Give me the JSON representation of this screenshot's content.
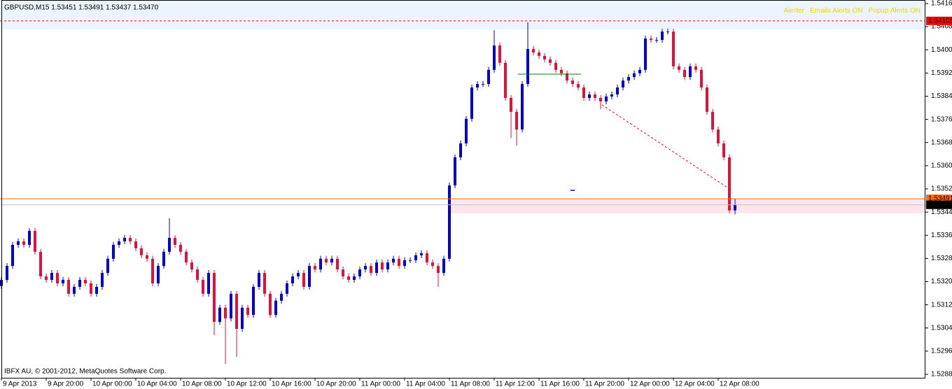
{
  "chart_data": {
    "type": "candlestick",
    "title": "GBPUSD,M15  1.53451 1.53491 1.53437 1.53470",
    "footer": "IBFX AU, © 2001-2012, MetaQuotes Software Corp.",
    "alerts": [
      "Alerter",
      "Emails Alerts ON",
      "Popup Alerts ON"
    ],
    "alert_color": "#e8d800",
    "up_color": "#0000c8",
    "down_color": "#dc143c",
    "xlim": [
      -0.25,
      165
    ],
    "ylim": [
      1.52873,
      1.54177
    ],
    "yticks": [
      1.54165,
      1.54085,
      1.54005,
      1.53925,
      1.53845,
      1.53765,
      1.53685,
      1.53605,
      1.53525,
      1.53445,
      1.53365,
      1.53285,
      1.53205,
      1.53125,
      1.53045,
      1.52965,
      1.52885
    ],
    "xticks": [
      {
        "value": 0,
        "label": "9 Apr 2013"
      },
      {
        "value": 8,
        "label": "9 Apr 20:00"
      },
      {
        "value": 16,
        "label": "10 Apr 00:00"
      },
      {
        "value": 24,
        "label": "10 Apr 04:00"
      },
      {
        "value": 32,
        "label": "10 Apr 08:00"
      },
      {
        "value": 40,
        "label": "10 Apr 12:00"
      },
      {
        "value": 48,
        "label": "10 Apr 16:00"
      },
      {
        "value": 56,
        "label": "10 Apr 20:00"
      },
      {
        "value": 64,
        "label": "11 Apr 00:00"
      },
      {
        "value": 72,
        "label": "11 Apr 04:00"
      },
      {
        "value": 80,
        "label": "11 Apr 08:00"
      },
      {
        "value": 88,
        "label": "11 Apr 12:00"
      },
      {
        "value": 96,
        "label": "11 Apr 16:00"
      },
      {
        "value": 104,
        "label": "11 Apr 20:00"
      },
      {
        "value": 112,
        "label": "12 Apr 00:00"
      },
      {
        "value": 120,
        "label": "12 Apr 04:00"
      },
      {
        "value": 128,
        "label": "12 Apr 08:00"
      }
    ],
    "open": [
      1.5319,
      1.53211,
      1.53259,
      1.53332,
      1.53344,
      1.53332,
      1.5338,
      1.53308,
      1.53223,
      1.53211,
      1.53235,
      1.53199,
      1.53211,
      1.53163,
      1.53187,
      1.53211,
      1.53199,
      1.53163,
      1.53187,
      1.53235,
      1.53284,
      1.53332,
      1.53344,
      1.53356,
      1.53344,
      1.5332,
      1.53296,
      1.53284,
      1.53199,
      1.53259,
      1.53308,
      1.53356,
      1.53332,
      1.53308,
      1.53271,
      1.53247,
      1.53211,
      1.53163,
      1.53235,
      1.53066,
      1.53115,
      1.53078,
      1.53163,
      1.53042,
      1.53115,
      1.5309,
      1.53187,
      1.53235,
      1.53163,
      1.5309,
      1.53139,
      1.53163,
      1.53199,
      1.53223,
      1.53235,
      1.53187,
      1.53259,
      1.53247,
      1.53284,
      1.53271,
      1.53284,
      1.53247,
      1.53223,
      1.53211,
      1.53223,
      1.53247,
      1.53259,
      1.53235,
      1.53271,
      1.53247,
      1.53271,
      1.53284,
      1.53259,
      1.53279,
      1.53279,
      1.53296,
      1.53303,
      1.53271,
      1.53259,
      1.53235,
      1.53284,
      1.53537,
      1.53634,
      1.53682,
      1.53767,
      1.53875,
      1.53887,
      1.53887,
      1.53936,
      1.5402,
      1.5396,
      1.53839,
      1.53791,
      1.5373,
      1.53887,
      1.54008,
      1.53996,
      1.53984,
      1.53972,
      1.5396,
      1.53936,
      1.53924,
      1.53899,
      1.53887,
      1.53875,
      1.53839,
      1.53851,
      1.53839,
      1.53827,
      1.53844,
      1.53851,
      1.53875,
      1.53899,
      1.53911,
      1.53924,
      1.53936,
      1.54044,
      1.54039,
      1.54039,
      1.54068,
      1.54068,
      1.53948,
      1.53936,
      1.53911,
      1.53948,
      1.53936,
      1.53875,
      1.53791,
      1.5373,
      1.53682,
      1.53634,
      1.53451
    ],
    "high": [
      1.53221,
      1.53269,
      1.53342,
      1.53354,
      1.53354,
      1.5339,
      1.5339,
      1.53318,
      1.53233,
      1.53245,
      1.53245,
      1.53221,
      1.53221,
      1.53197,
      1.53221,
      1.53221,
      1.53209,
      1.53197,
      1.53245,
      1.53294,
      1.53342,
      1.53354,
      1.53366,
      1.53366,
      1.53354,
      1.5333,
      1.53306,
      1.53294,
      1.53269,
      1.53318,
      1.53424,
      1.53366,
      1.53342,
      1.53318,
      1.53281,
      1.53257,
      1.53221,
      1.53245,
      1.53245,
      1.53125,
      1.53125,
      1.53173,
      1.53173,
      1.53125,
      1.53125,
      1.53197,
      1.53245,
      1.53245,
      1.53173,
      1.53149,
      1.53173,
      1.53209,
      1.53233,
      1.53245,
      1.53245,
      1.53269,
      1.53269,
      1.53294,
      1.53294,
      1.53294,
      1.53294,
      1.53257,
      1.53233,
      1.53233,
      1.53257,
      1.53269,
      1.53269,
      1.53281,
      1.53281,
      1.53281,
      1.53294,
      1.53294,
      1.53289,
      1.53289,
      1.53306,
      1.53313,
      1.53313,
      1.53281,
      1.53269,
      1.53294,
      1.53547,
      1.53644,
      1.53692,
      1.53777,
      1.53885,
      1.53897,
      1.53897,
      1.53946,
      1.54073,
      1.5403,
      1.5397,
      1.53849,
      1.53801,
      1.53897,
      1.541,
      1.54018,
      1.54006,
      1.53994,
      1.53982,
      1.5397,
      1.53946,
      1.53934,
      1.53909,
      1.53897,
      1.53885,
      1.53861,
      1.53861,
      1.53849,
      1.53854,
      1.53861,
      1.53885,
      1.53909,
      1.53921,
      1.53934,
      1.53946,
      1.54054,
      1.54054,
      1.54049,
      1.54078,
      1.54078,
      1.54078,
      1.53958,
      1.53946,
      1.53958,
      1.53958,
      1.53946,
      1.53885,
      1.53801,
      1.5374,
      1.53692,
      1.53644,
      1.53491
    ],
    "low": [
      1.5318,
      1.53201,
      1.53249,
      1.53322,
      1.53322,
      1.53322,
      1.53298,
      1.53213,
      1.53201,
      1.53201,
      1.53189,
      1.53189,
      1.53153,
      1.53153,
      1.53177,
      1.53189,
      1.53153,
      1.53153,
      1.53177,
      1.53225,
      1.53274,
      1.53322,
      1.53334,
      1.53334,
      1.5331,
      1.53286,
      1.53274,
      1.53189,
      1.53189,
      1.53249,
      1.53298,
      1.53322,
      1.53298,
      1.53261,
      1.53237,
      1.53201,
      1.53153,
      1.53153,
      1.5302,
      1.53056,
      1.52921,
      1.53068,
      1.52945,
      1.53032,
      1.5308,
      1.5308,
      1.53177,
      1.53153,
      1.5308,
      1.5308,
      1.53129,
      1.53153,
      1.53189,
      1.53213,
      1.53177,
      1.53177,
      1.53237,
      1.53237,
      1.53261,
      1.53261,
      1.53237,
      1.53213,
      1.53201,
      1.53201,
      1.53213,
      1.53237,
      1.53225,
      1.53225,
      1.53237,
      1.53237,
      1.53261,
      1.53249,
      1.53249,
      1.53269,
      1.53269,
      1.53286,
      1.53261,
      1.53249,
      1.53187,
      1.53225,
      1.53274,
      1.53527,
      1.53624,
      1.53672,
      1.53757,
      1.53865,
      1.53877,
      1.53877,
      1.53926,
      1.5395,
      1.53829,
      1.537,
      1.53675,
      1.5372,
      1.53877,
      1.53986,
      1.53974,
      1.53962,
      1.5395,
      1.53926,
      1.53914,
      1.53889,
      1.53877,
      1.53865,
      1.53829,
      1.53829,
      1.53829,
      1.538,
      1.53817,
      1.53834,
      1.53841,
      1.53865,
      1.53889,
      1.53901,
      1.53914,
      1.53926,
      1.54029,
      1.54029,
      1.54029,
      1.54058,
      1.53938,
      1.53926,
      1.53901,
      1.53901,
      1.53926,
      1.53865,
      1.53781,
      1.5372,
      1.53672,
      1.53624,
      1.53441,
      1.53437
    ],
    "close": [
      1.53211,
      1.53259,
      1.53332,
      1.53344,
      1.53332,
      1.5338,
      1.53308,
      1.53223,
      1.53211,
      1.53235,
      1.53199,
      1.53211,
      1.53163,
      1.53187,
      1.53211,
      1.53199,
      1.53163,
      1.53187,
      1.53235,
      1.53284,
      1.53332,
      1.53344,
      1.53356,
      1.53344,
      1.5332,
      1.53296,
      1.53284,
      1.53199,
      1.53259,
      1.53308,
      1.53356,
      1.53332,
      1.53308,
      1.53271,
      1.53247,
      1.53211,
      1.53163,
      1.53235,
      1.53066,
      1.53115,
      1.53078,
      1.53163,
      1.53042,
      1.53115,
      1.5309,
      1.53187,
      1.53235,
      1.53163,
      1.5309,
      1.53139,
      1.53163,
      1.53199,
      1.53223,
      1.53235,
      1.53187,
      1.53259,
      1.53247,
      1.53284,
      1.53271,
      1.53284,
      1.53247,
      1.53223,
      1.53211,
      1.53223,
      1.53247,
      1.53259,
      1.53235,
      1.53271,
      1.53247,
      1.53271,
      1.53284,
      1.53259,
      1.53279,
      1.53279,
      1.53296,
      1.53303,
      1.53271,
      1.53259,
      1.53235,
      1.53284,
      1.53537,
      1.53634,
      1.53682,
      1.53767,
      1.53875,
      1.53887,
      1.53887,
      1.53936,
      1.5402,
      1.5396,
      1.53839,
      1.53791,
      1.5373,
      1.53887,
      1.54008,
      1.53996,
      1.53984,
      1.53972,
      1.5396,
      1.53936,
      1.53924,
      1.53899,
      1.53887,
      1.53875,
      1.53839,
      1.53851,
      1.53839,
      1.53827,
      1.53844,
      1.53851,
      1.53875,
      1.53899,
      1.53911,
      1.53924,
      1.53936,
      1.54044,
      1.54039,
      1.54039,
      1.54068,
      1.54068,
      1.53948,
      1.53936,
      1.53911,
      1.53948,
      1.53936,
      1.53875,
      1.53791,
      1.5373,
      1.53682,
      1.53634,
      1.53451,
      1.5347
    ],
    "zones": [
      {
        "y1": 1.54076,
        "y2": 1.54177,
        "color": "#ecf5ff"
      },
      {
        "x1": 80,
        "y1": 1.53441,
        "y2": 1.53491,
        "color": "#ffe6ec"
      }
    ],
    "hlines": [
      {
        "value": 1.54105,
        "color": "#ff0000",
        "dashed": true,
        "text_color": "#ffffff"
      },
      {
        "value": 1.53491,
        "color": "#ff6a00",
        "dashed": false,
        "text_color": "#ffffff"
      },
      {
        "value": 1.5347,
        "label": "1.53470",
        "color": "#c0c0c0",
        "box": "#000000",
        "dashed": false,
        "text_color": "#ffffff"
      }
    ],
    "trendlines": [
      {
        "x": [
          92.25,
          103.5
        ],
        "y": [
          1.53921,
          1.53921
        ],
        "color": "#008000",
        "dashed": false
      },
      {
        "x": [
          107.25,
          130.4
        ],
        "y": [
          1.53815,
          1.5352
        ],
        "color": "#ff0000",
        "dashed": true
      }
    ],
    "markers": [
      {
        "x": 102,
        "y": 1.5352,
        "color": "#0000c8"
      }
    ]
  }
}
